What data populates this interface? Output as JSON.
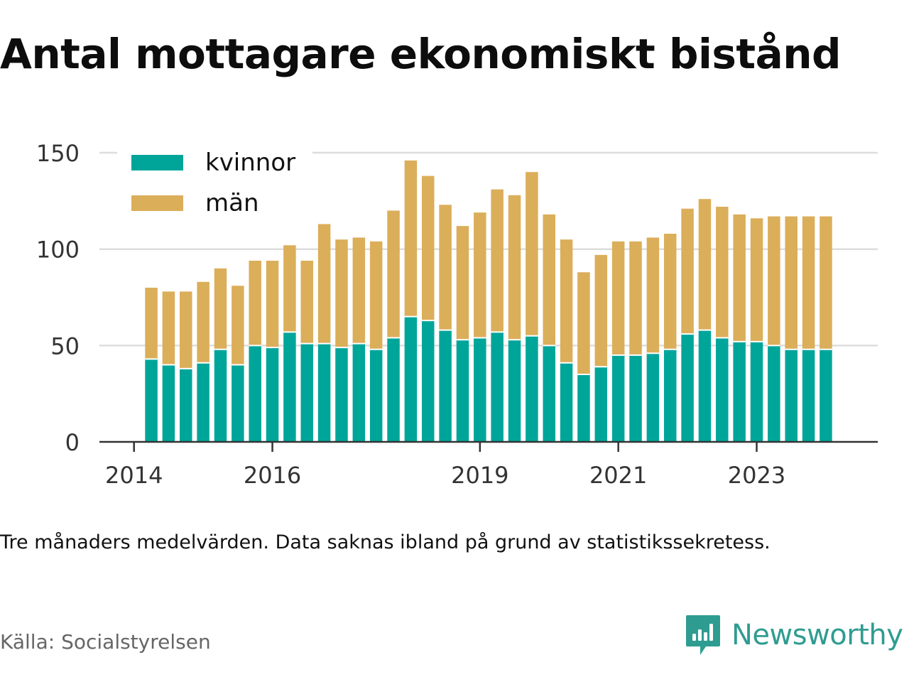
{
  "title": "Antal mottagare ekonomiskt bistånd",
  "note": "Tre månaders medelvärden. Data saknas ibland på grund av statistikssekretess.",
  "source": "Källa: Socialstyrelsen",
  "brand": {
    "name": "Newsworthy",
    "icon": "newsworthy-logo-icon",
    "color": "#2f9c91"
  },
  "chart_data": {
    "type": "bar",
    "stacked": true,
    "x_domain": [
      2013.5,
      2024.75
    ],
    "x_ticks": [
      2014,
      2016,
      2019,
      2021,
      2023
    ],
    "x_tick_labels": [
      "2014",
      "2016",
      "2019",
      "2021",
      "2023"
    ],
    "ylim": [
      0,
      160
    ],
    "y_ticks": [
      0,
      50,
      100,
      150
    ],
    "y_tick_labels": [
      "0",
      "50",
      "100",
      "150"
    ],
    "grid": true,
    "legend": {
      "placement": "top-left"
    },
    "x": [
      2014.25,
      2014.5,
      2014.75,
      2015.0,
      2015.25,
      2015.5,
      2015.75,
      2016.0,
      2016.25,
      2016.5,
      2016.75,
      2017.0,
      2017.25,
      2017.5,
      2017.75,
      2018.0,
      2018.25,
      2018.5,
      2018.75,
      2019.0,
      2019.25,
      2019.5,
      2019.75,
      2020.0,
      2020.25,
      2020.5,
      2020.75,
      2021.0,
      2021.25,
      2021.5,
      2021.75,
      2022.0,
      2022.25,
      2022.5,
      2022.75,
      2023.0,
      2023.25,
      2023.5,
      2023.75,
      2024.0
    ],
    "series": [
      {
        "name": "kvinnor",
        "color": "#00a59a",
        "values": [
          43,
          40,
          38,
          41,
          48,
          40,
          50,
          49,
          57,
          51,
          51,
          49,
          51,
          48,
          54,
          65,
          63,
          58,
          53,
          54,
          57,
          53,
          55,
          50,
          41,
          35,
          39,
          45,
          45,
          46,
          48,
          56,
          58,
          54,
          52,
          52,
          50,
          48,
          48,
          48
        ]
      },
      {
        "name": "män",
        "color": "#dbae5a",
        "values": [
          37,
          38,
          40,
          42,
          42,
          41,
          44,
          45,
          45,
          43,
          62,
          56,
          55,
          56,
          66,
          81,
          75,
          65,
          59,
          65,
          74,
          75,
          85,
          68,
          64,
          53,
          58,
          59,
          59,
          60,
          60,
          65,
          68,
          68,
          66,
          64,
          67,
          69,
          69,
          69
        ]
      }
    ]
  }
}
